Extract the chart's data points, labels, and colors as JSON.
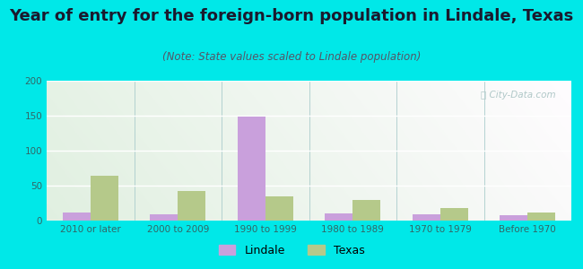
{
  "title": "Year of entry for the foreign-born population in Lindale, Texas",
  "subtitle": "(Note: State values scaled to Lindale population)",
  "categories": [
    "2010 or later",
    "2000 to 2009",
    "1990 to 1999",
    "1980 to 1989",
    "1970 to 1979",
    "Before 1970"
  ],
  "lindale_values": [
    12,
    9,
    149,
    10,
    9,
    8
  ],
  "texas_values": [
    64,
    42,
    34,
    29,
    18,
    12
  ],
  "lindale_color": "#c9a0dc",
  "texas_color": "#b5c98a",
  "ylim": [
    0,
    200
  ],
  "yticks": [
    0,
    50,
    100,
    150,
    200
  ],
  "bar_width": 0.32,
  "background_outer": "#00e8e8",
  "grid_color": "#ffffff",
  "title_fontsize": 13,
  "subtitle_fontsize": 8.5,
  "tick_fontsize": 7.5,
  "legend_fontsize": 9,
  "title_color": "#1a1a2e",
  "subtitle_color": "#555566",
  "tick_color": "#336666",
  "watermark_color": "#b0c8c8"
}
